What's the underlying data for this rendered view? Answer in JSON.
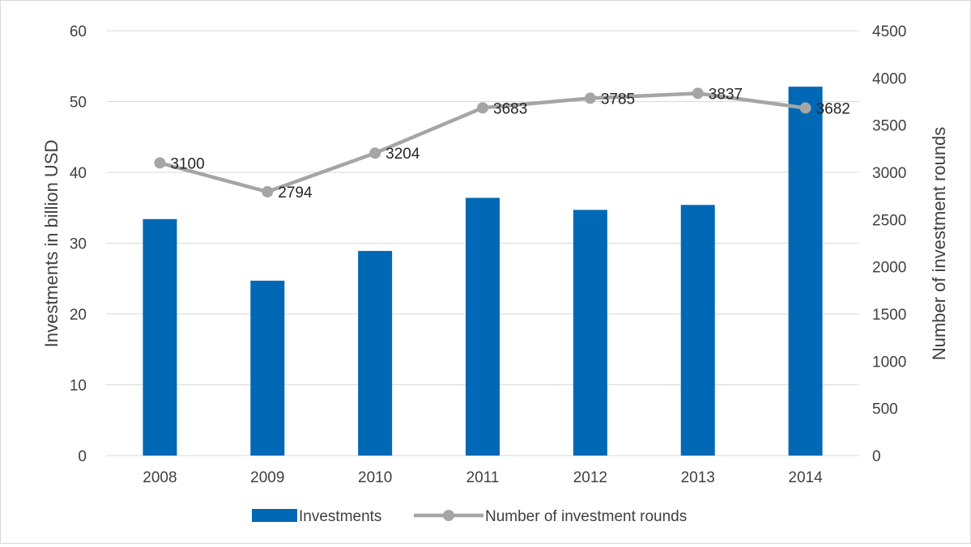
{
  "chart_data": {
    "type": "bar",
    "title": "",
    "categories": [
      "2008",
      "2009",
      "2010",
      "2011",
      "2012",
      "2013",
      "2014"
    ],
    "series": [
      {
        "name": "Investments",
        "type": "bar",
        "axis": "left",
        "color": "#0068b4",
        "values": [
          33.4,
          24.7,
          28.9,
          36.4,
          34.7,
          35.4,
          52.1
        ]
      },
      {
        "name": "Number of investment rounds",
        "type": "line",
        "axis": "right",
        "color": "#a5a5a5",
        "marker": "circle",
        "values": [
          3100,
          2794,
          3204,
          3683,
          3785,
          3837,
          3682
        ],
        "data_labels": [
          "3100",
          "2794",
          "3204",
          "3683",
          "3785",
          "3837",
          "3682"
        ]
      }
    ],
    "ylabel": "Investments in billion USD",
    "ylim": [
      0,
      60
    ],
    "yticks": [
      "0",
      "10",
      "20",
      "30",
      "40",
      "50",
      "60"
    ],
    "y2label": "Number of investment rounds",
    "y2lim": [
      0,
      4500
    ],
    "y2ticks": [
      "0",
      "500",
      "1000",
      "1500",
      "2000",
      "2500",
      "3000",
      "3500",
      "4000",
      "4500"
    ],
    "grid": true,
    "legend_position": "bottom"
  }
}
